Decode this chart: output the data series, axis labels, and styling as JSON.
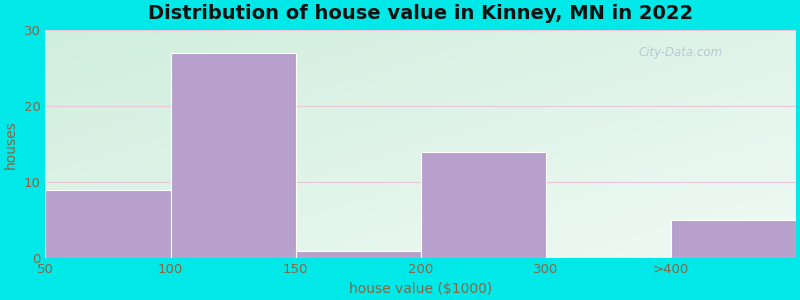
{
  "title": "Distribution of house value in Kinney, MN in 2022",
  "xlabel": "house value ($1000)",
  "ylabel": "houses",
  "categories": [
    "50",
    "100",
    "150",
    "200",
    "300",
    ">400"
  ],
  "values": [
    9,
    27,
    1,
    14,
    0,
    5
  ],
  "bar_color": "#b8a0cc",
  "bar_edgecolor": "#c8b0dc",
  "ylim": [
    0,
    30
  ],
  "yticks": [
    0,
    10,
    20,
    30
  ],
  "background_outer": "#00e8e8",
  "bg_color_topleft": "#d0eedd",
  "bg_color_bottomright": "#f0faf5",
  "gridline_color": "#e8c8d8",
  "title_fontsize": 14,
  "label_fontsize": 10,
  "tick_fontsize": 9.5,
  "tick_color": "#886644",
  "label_color": "#886644",
  "title_color": "#111111",
  "figsize": [
    8.0,
    3.0
  ],
  "dpi": 100
}
